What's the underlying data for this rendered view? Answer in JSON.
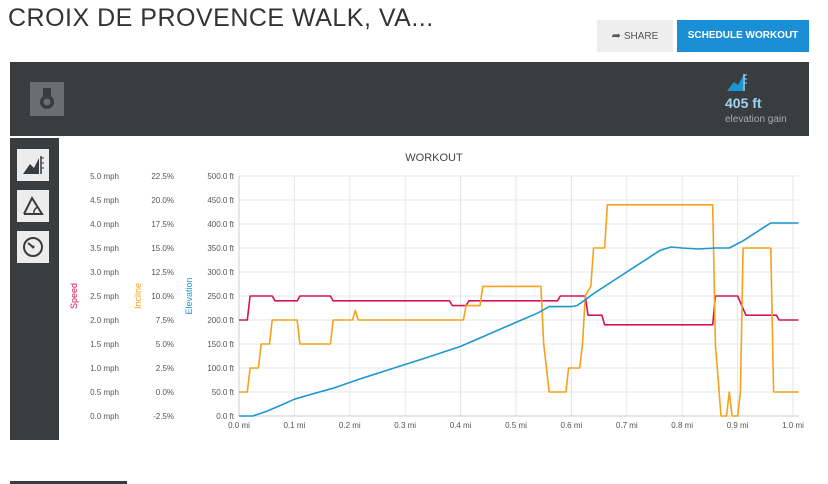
{
  "header": {
    "title": "CROIX DE PROVENCE WALK, VA...",
    "share_label": "SHARE",
    "schedule_label": "SCHEDULE WORKOUT"
  },
  "topbar": {
    "medal_icon": "medal-icon",
    "gain_icon": "elevation-gain-icon",
    "gain_value": "405 ft",
    "gain_label": "elevation gain"
  },
  "sidebar": {
    "items": [
      {
        "icon": "elevation-chart-icon"
      },
      {
        "icon": "incline-icon"
      },
      {
        "icon": "speedometer-icon"
      }
    ]
  },
  "colors": {
    "speed": "#d6135a",
    "incline": "#f5a11c",
    "elevation": "#1a97d1",
    "accent": "#1a8fd6",
    "dark": "#3a3d40"
  },
  "chart_data": {
    "type": "line",
    "title": "WORKOUT",
    "x": {
      "range": [
        0,
        1.0
      ],
      "ticks": [
        0.0,
        0.1,
        0.2,
        0.3,
        0.4,
        0.5,
        0.6,
        0.7,
        0.8,
        0.9,
        1.0
      ],
      "tick_labels": [
        "0.0 mi",
        "0.1 mi",
        "0.2 mi",
        "0.3 mi",
        "0.4 mi",
        "0.5 mi",
        "0.6 mi",
        "0.7 mi",
        "0.8 mi",
        "0.9 mi",
        "1.0 mi"
      ]
    },
    "axes": {
      "speed": {
        "label": "Speed",
        "min": 0,
        "max": 5,
        "tick_labels": [
          "0.0 mph",
          "0.5 mph",
          "1.0 mph",
          "1.5 mph",
          "2.0 mph",
          "2.5 mph",
          "3.0 mph",
          "3.5 mph",
          "4.0 mph",
          "4.5 mph",
          "5.0 mph"
        ]
      },
      "incline": {
        "label": "Incline",
        "min": -2.5,
        "max": 22.5,
        "tick_labels": [
          "-2.5%",
          "0.0%",
          "2.5%",
          "5.0%",
          "7.5%",
          "10.0%",
          "12.5%",
          "15.0%",
          "17.5%",
          "20.0%",
          "22.5%"
        ]
      },
      "elevation": {
        "label": "Elevation",
        "min": 0,
        "max": 500,
        "tick_labels": [
          "0.0 ft",
          "50.0 ft",
          "100.0 ft",
          "150.0 ft",
          "200.0 ft",
          "250.0 ft",
          "300.0 ft",
          "350.0 ft",
          "400.0 ft",
          "450.0 ft",
          "500.0 ft"
        ]
      }
    },
    "grid": true,
    "series": [
      {
        "name": "Speed",
        "axis": "speed",
        "points": [
          [
            0,
            2.0
          ],
          [
            0.015,
            2.0
          ],
          [
            0.02,
            2.5
          ],
          [
            0.06,
            2.5
          ],
          [
            0.065,
            2.4
          ],
          [
            0.105,
            2.4
          ],
          [
            0.11,
            2.5
          ],
          [
            0.165,
            2.5
          ],
          [
            0.17,
            2.4
          ],
          [
            0.32,
            2.4
          ],
          [
            0.325,
            2.4
          ],
          [
            0.38,
            2.4
          ],
          [
            0.385,
            2.3
          ],
          [
            0.41,
            2.3
          ],
          [
            0.415,
            2.4
          ],
          [
            0.44,
            2.4
          ],
          [
            0.445,
            2.4
          ],
          [
            0.55,
            2.4
          ],
          [
            0.555,
            2.4
          ],
          [
            0.575,
            2.4
          ],
          [
            0.58,
            2.5
          ],
          [
            0.625,
            2.5
          ],
          [
            0.63,
            2.1
          ],
          [
            0.655,
            2.1
          ],
          [
            0.66,
            1.9
          ],
          [
            0.855,
            1.9
          ],
          [
            0.86,
            2.5
          ],
          [
            0.9,
            2.5
          ],
          [
            0.915,
            2.1
          ],
          [
            0.97,
            2.1
          ],
          [
            0.975,
            2.0
          ],
          [
            1.01,
            2.0
          ]
        ]
      },
      {
        "name": "Incline",
        "axis": "incline",
        "points": [
          [
            0,
            0
          ],
          [
            0.015,
            0
          ],
          [
            0.02,
            2.5
          ],
          [
            0.035,
            2.5
          ],
          [
            0.04,
            5
          ],
          [
            0.055,
            5
          ],
          [
            0.06,
            7.5
          ],
          [
            0.105,
            7.5
          ],
          [
            0.11,
            5
          ],
          [
            0.165,
            5
          ],
          [
            0.17,
            7.5
          ],
          [
            0.205,
            7.5
          ],
          [
            0.21,
            8.5
          ],
          [
            0.215,
            7.5
          ],
          [
            0.405,
            7.5
          ],
          [
            0.41,
            9
          ],
          [
            0.435,
            9
          ],
          [
            0.44,
            11
          ],
          [
            0.545,
            11
          ],
          [
            0.55,
            5
          ],
          [
            0.56,
            0
          ],
          [
            0.59,
            0
          ],
          [
            0.595,
            2.5
          ],
          [
            0.615,
            2.5
          ],
          [
            0.62,
            5
          ],
          [
            0.625,
            10
          ],
          [
            0.635,
            11
          ],
          [
            0.64,
            15
          ],
          [
            0.66,
            15
          ],
          [
            0.665,
            19.5
          ],
          [
            0.855,
            19.5
          ],
          [
            0.86,
            5
          ],
          [
            0.87,
            -2.5
          ],
          [
            0.88,
            -2.5
          ],
          [
            0.885,
            0
          ],
          [
            0.89,
            -2.5
          ],
          [
            0.9,
            -2.5
          ],
          [
            0.905,
            0
          ],
          [
            0.91,
            15
          ],
          [
            0.96,
            15
          ],
          [
            0.965,
            0
          ],
          [
            1.01,
            0
          ]
        ]
      },
      {
        "name": "Elevation",
        "axis": "elevation",
        "points": [
          [
            0,
            0
          ],
          [
            0.025,
            0
          ],
          [
            0.05,
            10
          ],
          [
            0.075,
            22
          ],
          [
            0.1,
            35
          ],
          [
            0.13,
            45
          ],
          [
            0.17,
            58
          ],
          [
            0.22,
            78
          ],
          [
            0.28,
            100
          ],
          [
            0.34,
            122
          ],
          [
            0.4,
            145
          ],
          [
            0.45,
            170
          ],
          [
            0.5,
            195
          ],
          [
            0.54,
            215
          ],
          [
            0.56,
            228
          ],
          [
            0.6,
            228
          ],
          [
            0.61,
            230
          ],
          [
            0.62,
            238
          ],
          [
            0.64,
            255
          ],
          [
            0.7,
            300
          ],
          [
            0.76,
            345
          ],
          [
            0.78,
            352
          ],
          [
            0.8,
            350
          ],
          [
            0.83,
            348
          ],
          [
            0.86,
            350
          ],
          [
            0.885,
            350
          ],
          [
            0.91,
            365
          ],
          [
            0.95,
            395
          ],
          [
            0.96,
            402
          ],
          [
            0.985,
            402
          ],
          [
            1.01,
            402
          ]
        ]
      }
    ]
  }
}
